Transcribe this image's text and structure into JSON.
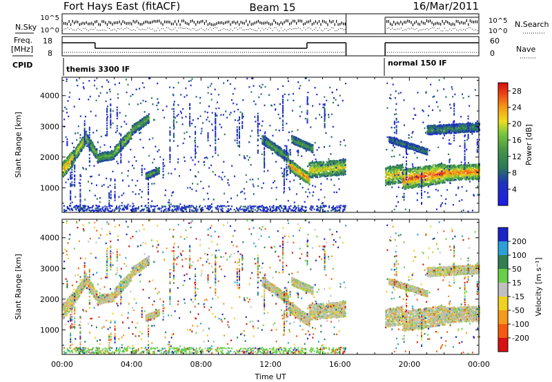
{
  "header": {
    "title": "Fort Hays East (fitACF)",
    "beam": "Beam 15",
    "date": "16/Mar/2011"
  },
  "strips": {
    "nsky_label": "N.Sky",
    "nsky_ticks": [
      "10^5",
      "10^0"
    ],
    "nsearch_label": "N.Search",
    "nsearch_ticks": [
      "10^5",
      "10^0"
    ],
    "freq_label": "Freq.",
    "freq_unit": "[MHz]",
    "freq_ticks": [
      "18",
      "8"
    ],
    "nave_label": "Nave",
    "nave_ticks": [
      "60",
      "0"
    ],
    "cpid_label": "CPID",
    "cpid_segments": [
      {
        "label": "themis 3300 IF",
        "start_hour": 0.0,
        "end_hour": 16.35
      },
      {
        "label": "normal 150 IF",
        "start_hour": 18.6,
        "end_hour": 24.0
      }
    ]
  },
  "chart_data": [
    {
      "type": "heatmap",
      "name": "power",
      "xlabel": "Time UT",
      "ylabel": "Slant Range [km]",
      "xlim_hours": [
        0,
        24
      ],
      "ylim_km": [
        200,
        4600
      ],
      "x_ticks": [
        "00:00",
        "04:00",
        "08:00",
        "12:00",
        "16:00",
        "20:00",
        "00:00"
      ],
      "y_ticks": [
        1000,
        2000,
        3000,
        4000
      ],
      "colorbar_label": "Power [dB]",
      "colorbar_ticks": [
        4,
        8,
        12,
        16,
        20,
        24,
        28
      ],
      "colorbar_range": [
        0,
        30
      ],
      "data_gap_hours": [
        16.35,
        18.6
      ],
      "echo_bands": [
        {
          "start_hour": 0.0,
          "end_hour": 0.6,
          "range_start_km": 1600,
          "range_end_km": 2000,
          "width_km": 500,
          "intensity": 0.8
        },
        {
          "start_hour": 0.6,
          "end_hour": 1.4,
          "range_start_km": 2000,
          "range_end_km": 2700,
          "width_km": 400,
          "intensity": 0.7
        },
        {
          "start_hour": 1.4,
          "end_hour": 2.0,
          "range_start_km": 2600,
          "range_end_km": 2100,
          "width_km": 350,
          "intensity": 0.55
        },
        {
          "start_hour": 2.0,
          "end_hour": 3.0,
          "range_start_km": 2000,
          "range_end_km": 2100,
          "width_km": 300,
          "intensity": 0.5
        },
        {
          "start_hour": 3.0,
          "end_hour": 4.0,
          "range_start_km": 2200,
          "range_end_km": 2800,
          "width_km": 350,
          "intensity": 0.6
        },
        {
          "start_hour": 4.0,
          "end_hour": 5.0,
          "range_start_km": 2900,
          "range_end_km": 3300,
          "width_km": 300,
          "intensity": 0.5
        },
        {
          "start_hour": 4.8,
          "end_hour": 5.6,
          "range_start_km": 1400,
          "range_end_km": 1600,
          "width_km": 200,
          "intensity": 0.5
        },
        {
          "start_hour": 11.5,
          "end_hour": 13.0,
          "range_start_km": 2600,
          "range_end_km": 2000,
          "width_km": 300,
          "intensity": 0.5
        },
        {
          "start_hour": 13.0,
          "end_hour": 14.2,
          "range_start_km": 1800,
          "range_end_km": 1300,
          "width_km": 350,
          "intensity": 0.85
        },
        {
          "start_hour": 13.2,
          "end_hour": 14.4,
          "range_start_km": 2600,
          "range_end_km": 2300,
          "width_km": 250,
          "intensity": 0.45
        },
        {
          "start_hour": 14.2,
          "end_hour": 16.3,
          "range_start_km": 1600,
          "range_end_km": 1700,
          "width_km": 500,
          "intensity": 0.7
        },
        {
          "start_hour": 18.6,
          "end_hour": 19.6,
          "range_start_km": 1400,
          "range_end_km": 1500,
          "width_km": 600,
          "intensity": 0.75
        },
        {
          "start_hour": 19.6,
          "end_hour": 22.0,
          "range_start_km": 1300,
          "range_end_km": 1500,
          "width_km": 650,
          "intensity": 0.9
        },
        {
          "start_hour": 22.0,
          "end_hour": 24.0,
          "range_start_km": 1500,
          "range_end_km": 1550,
          "width_km": 500,
          "intensity": 0.85
        },
        {
          "start_hour": 18.8,
          "end_hour": 21.0,
          "range_start_km": 2600,
          "range_end_km": 2200,
          "width_km": 200,
          "intensity": 0.35
        },
        {
          "start_hour": 21.0,
          "end_hour": 24.0,
          "range_start_km": 2900,
          "range_end_km": 3000,
          "width_km": 300,
          "intensity": 0.4
        }
      ],
      "ground_scatter": [
        {
          "start_hour": 0.0,
          "end_hour": 16.3,
          "range_start_km": 220,
          "range_end_km": 450
        }
      ]
    },
    {
      "type": "heatmap",
      "name": "velocity",
      "xlabel": "Time UT",
      "ylabel": "Slant Range [km]",
      "xlim_hours": [
        0,
        24
      ],
      "ylim_km": [
        200,
        4600
      ],
      "x_ticks": [
        "00:00",
        "04:00",
        "08:00",
        "12:00",
        "16:00",
        "20:00",
        "00:00"
      ],
      "y_ticks": [
        1000,
        2000,
        3000,
        4000
      ],
      "colorbar_label": "Velocity [m s⁻¹]",
      "colorbar_ticks": [
        "200",
        "100",
        "50",
        "15",
        "-15",
        "-50",
        "-100",
        "-200"
      ],
      "colorbar_colors": [
        "#1a24c8",
        "#2aa0d8",
        "#2f7f50",
        "#68d048",
        "#c0c0c0",
        "#f0d020",
        "#f59a1a",
        "#f55a10",
        "#d81010"
      ],
      "data_gap_hours": [
        16.35,
        18.6
      ]
    }
  ]
}
